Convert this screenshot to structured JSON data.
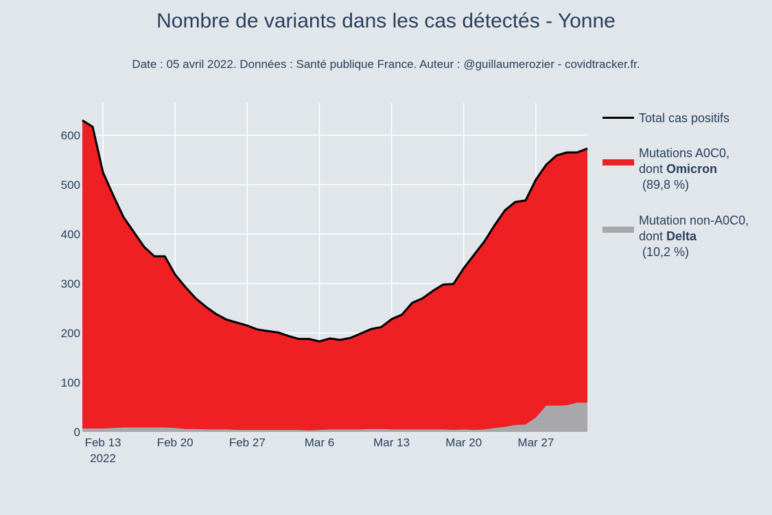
{
  "title": "Nombre de variants dans les cas détectés - Yonne",
  "subtitle": "Date : 05 avril 2022. Données : Santé publique France. Auteur : @guillaumerozier - covidtracker.fr.",
  "legend": {
    "total": "Total cas positifs",
    "a0c0_line1": "Mutations A0C0,",
    "a0c0_line2_prefix": "dont ",
    "a0c0_line2_bold": "Omicron",
    "a0c0_line3": "(89,8 %)",
    "non_line1": "Mutation non-A0C0,",
    "non_line2_prefix": "dont ",
    "non_line2_bold": "Delta",
    "non_line3": "(10,2 %)"
  },
  "colors": {
    "a0c0": "#ee2024",
    "non_a0c0": "#a8a8aa",
    "total": "#000000",
    "grid": "#ffffff",
    "background": "#e0e6ea"
  },
  "chart_data": {
    "type": "area",
    "x_start": "2022-02-11",
    "x_ticks": [
      "Feb 13",
      "Feb 20",
      "Feb 27",
      "Mar 6",
      "Mar 13",
      "Mar 20",
      "Mar 27"
    ],
    "x_tick_year": "2022",
    "y_ticks": [
      "0",
      "100",
      "200",
      "300",
      "400",
      "500",
      "600"
    ],
    "ylim": [
      0,
      665
    ],
    "series": [
      {
        "name": "Total cas positifs",
        "values": [
          630,
          617,
          525,
          478,
          434,
          404,
          374,
          355,
          355,
          318,
          293,
          270,
          253,
          238,
          227,
          221,
          215,
          207,
          204,
          201,
          194,
          188,
          188,
          183,
          189,
          186,
          190,
          199,
          208,
          212,
          228,
          237,
          261,
          270,
          285,
          298,
          299,
          331,
          358,
          385,
          418,
          448,
          465,
          468,
          510,
          540,
          559,
          565,
          565,
          573
        ]
      },
      {
        "name": "Mutations A0C0, dont Omicron",
        "values": [
          623,
          610,
          518,
          470,
          425,
          395,
          365,
          346,
          346,
          310,
          287,
          264,
          248,
          233,
          222,
          217,
          211,
          203,
          200,
          197,
          190,
          184,
          185,
          179,
          184,
          181,
          185,
          194,
          202,
          206,
          223,
          232,
          256,
          265,
          280,
          293,
          295,
          326,
          354,
          380,
          410,
          438,
          451,
          453,
          481,
          487,
          506,
          511,
          506,
          514
        ]
      },
      {
        "name": "Mutation non-A0C0, dont Delta",
        "values": [
          7,
          7,
          7,
          8,
          9,
          9,
          9,
          9,
          9,
          8,
          6,
          6,
          5,
          5,
          5,
          4,
          4,
          4,
          4,
          4,
          4,
          4,
          3,
          4,
          5,
          5,
          5,
          5,
          6,
          6,
          5,
          5,
          5,
          5,
          5,
          5,
          4,
          5,
          4,
          5,
          8,
          10,
          14,
          15,
          29,
          53,
          53,
          54,
          59,
          59
        ]
      }
    ]
  }
}
